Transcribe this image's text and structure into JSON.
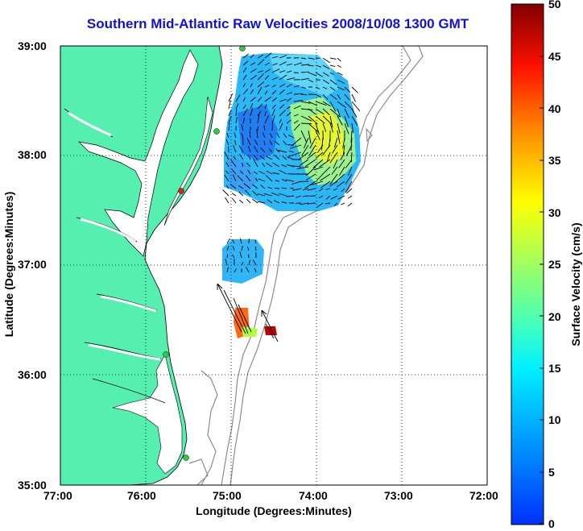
{
  "title": "Southern Mid-Atlantic Raw Velocities 2008/10/08 1300 GMT",
  "xlabel": "Longitude (Degrees:Minutes)",
  "ylabel": "Latitude (Degrees:Minutes)",
  "colorbar_label": "Surface Velocity (cm/s)",
  "x_ticks": [
    "77:00",
    "76:00",
    "75:00",
    "74:00",
    "73:00",
    "72:00"
  ],
  "y_ticks": [
    "39:00",
    "38:00",
    "37:00",
    "36:00",
    "35:00"
  ],
  "colorbar_ticks": [
    "50",
    "45",
    "40",
    "35",
    "30",
    "25",
    "20",
    "15",
    "10",
    "5",
    "0"
  ],
  "colors": {
    "title": "#1010e0",
    "land": "#55f0b0",
    "bathymetry": "#8c8c8c",
    "station": "#2ecc40",
    "station_alert": "#e02020"
  },
  "chart_data": {
    "type": "map",
    "xlim": [
      -77,
      -72
    ],
    "ylim": [
      35,
      39
    ],
    "clim": [
      0,
      50
    ],
    "colormap": "jet",
    "grid": true,
    "colorbar": "right",
    "stations": [
      {
        "lon": -74.87,
        "lat": 38.98,
        "status": "ok"
      },
      {
        "lon": -75.15,
        "lat": 38.22,
        "status": "ok"
      },
      {
        "lon": -75.53,
        "lat": 37.72,
        "status": "alert"
      },
      {
        "lon": -75.73,
        "lat": 36.18,
        "status": "ok"
      },
      {
        "lon": -75.5,
        "lat": 35.27,
        "status": "ok"
      }
    ]
  }
}
